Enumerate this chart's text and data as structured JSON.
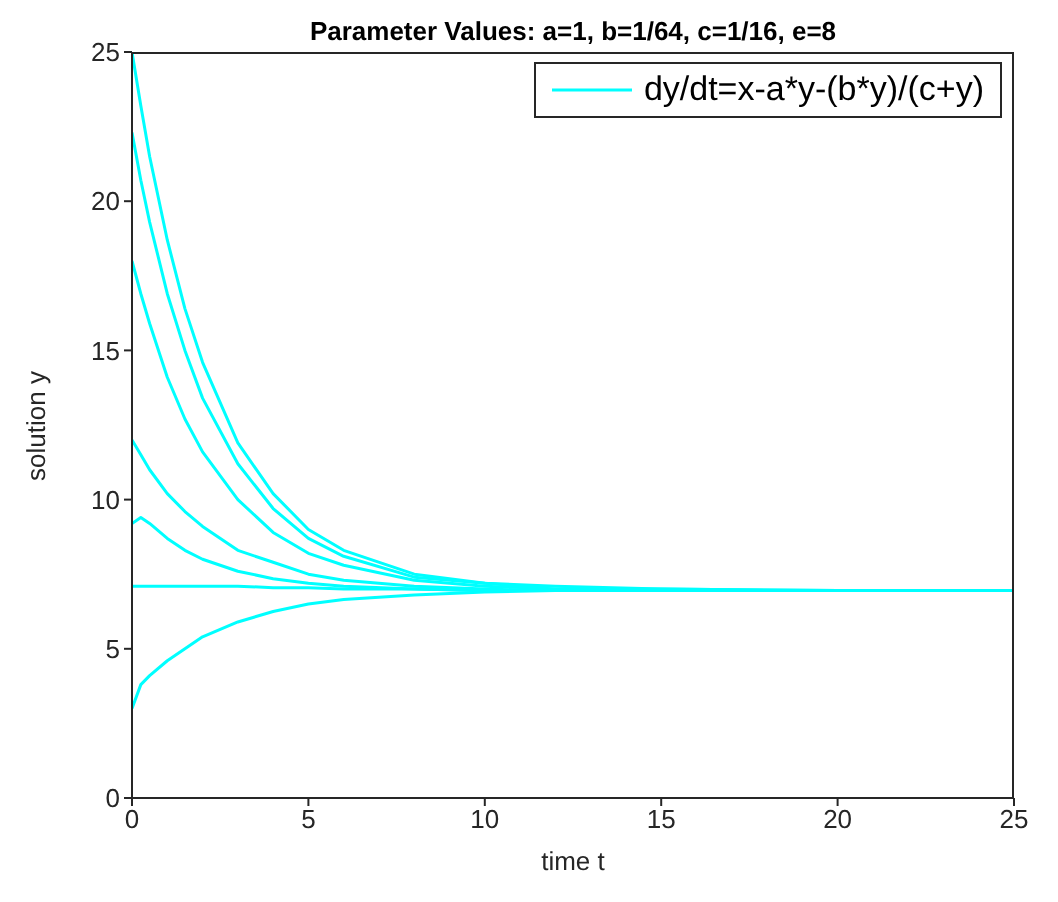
{
  "chart_data": {
    "type": "line",
    "title": "Parameter Values: a=1, b=1/64, c=1/16, e=8",
    "xlabel": "time t",
    "ylabel": "solution y",
    "x": [
      0,
      0.25,
      0.5,
      1,
      1.5,
      2,
      3,
      4,
      5,
      6,
      8,
      10,
      12,
      15,
      20,
      25
    ],
    "series": [
      {
        "name": "dy/dt=x-a*y-(b*y)/(c+y)",
        "color": "#00ffff",
        "values": [
          25,
          23.2,
          21.5,
          18.7,
          16.4,
          14.6,
          11.9,
          10.2,
          9.0,
          8.3,
          7.5,
          7.2,
          7.1,
          7.0,
          6.95,
          6.95
        ]
      },
      {
        "color": "#00ffff",
        "values": [
          22.3,
          20.7,
          19.3,
          16.9,
          15.0,
          13.4,
          11.2,
          9.7,
          8.7,
          8.1,
          7.4,
          7.2,
          7.0,
          7.0,
          6.95,
          6.95
        ]
      },
      {
        "color": "#00ffff",
        "values": [
          18,
          16.9,
          15.9,
          14.1,
          12.7,
          11.6,
          10.0,
          8.9,
          8.2,
          7.8,
          7.3,
          7.1,
          7.0,
          6.95,
          6.95,
          6.95
        ]
      },
      {
        "color": "#00ffff",
        "values": [
          12,
          11.5,
          11.0,
          10.2,
          9.6,
          9.1,
          8.3,
          7.9,
          7.5,
          7.3,
          7.1,
          7.0,
          6.95,
          6.95,
          6.95,
          6.95
        ]
      },
      {
        "color": "#00ffff",
        "values": [
          9.2,
          9.4,
          9.2,
          8.7,
          8.3,
          8.0,
          7.6,
          7.35,
          7.2,
          7.1,
          7.0,
          6.95,
          6.95,
          6.95,
          6.95,
          6.95
        ]
      },
      {
        "color": "#00ffff",
        "values": [
          7.1,
          7.1,
          7.1,
          7.1,
          7.1,
          7.1,
          7.1,
          7.05,
          7.05,
          7.0,
          7.0,
          6.95,
          6.95,
          6.95,
          6.95,
          6.95
        ]
      },
      {
        "color": "#00ffff",
        "values": [
          3.0,
          3.8,
          4.1,
          4.6,
          5.0,
          5.4,
          5.9,
          6.25,
          6.5,
          6.65,
          6.8,
          6.9,
          6.95,
          6.95,
          6.95,
          6.95
        ]
      }
    ],
    "xlim": [
      0,
      25
    ],
    "xticks": [
      0,
      5,
      10,
      15,
      20,
      25
    ],
    "ylim": [
      0,
      25
    ],
    "yticks": [
      0,
      5,
      10,
      15,
      20,
      25
    ],
    "grid": false,
    "legend": "top right",
    "marker": "none",
    "line_style": "solid"
  }
}
